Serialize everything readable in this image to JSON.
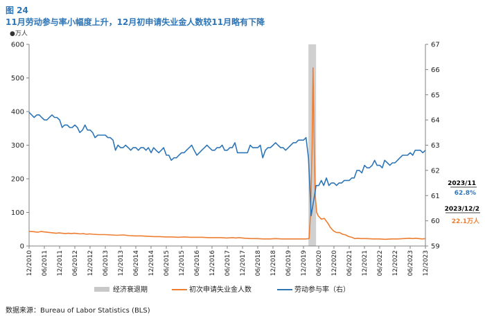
{
  "header": {
    "figure_number": "图 24",
    "title": "11月劳动参与率小幅度上升，12月初申请失业金人数较11月略有下降"
  },
  "source_note": "数据来源：Bureau of Labor Statistics (BLS)",
  "chart_data": {
    "type": "line",
    "y_left_unit": "万人",
    "y_left_lim": [
      0,
      600
    ],
    "y_left_ticks": [
      "0",
      "100",
      "200",
      "300",
      "400",
      "500",
      "600"
    ],
    "y_right_lim": [
      59,
      67
    ],
    "y_right_ticks": [
      "59",
      "60",
      "61",
      "62",
      "63",
      "64",
      "65",
      "66",
      "67"
    ],
    "x_tick_labels": [
      "12/2010",
      "06/2011",
      "12/2011",
      "06/2012",
      "12/2012",
      "06/2013",
      "12/2013",
      "06/2014",
      "12/2014",
      "06/2015",
      "12/2015",
      "06/2016",
      "12/2016",
      "06/2017",
      "12/2017",
      "06/2018",
      "12/2018",
      "06/2019",
      "12/2019",
      "06/2020",
      "12/2020",
      "06/2021",
      "12/2021",
      "06/2022",
      "12/2022",
      "06/2023",
      "12/2023"
    ],
    "x_range": [
      2010.917,
      2023.917
    ],
    "recession": {
      "name": "经济衰退期",
      "start": 2020.08,
      "end": 2020.33
    },
    "annotations": [
      {
        "label": "2023/11",
        "value": "62.8%",
        "color": "#2e75b6"
      },
      {
        "label": "2023/12/2",
        "value": "22.1万人",
        "color": "#ed7d31"
      }
    ],
    "series": [
      {
        "name": "初次申请失业金人数",
        "axis": "left",
        "color": "#ed7d31",
        "x": [
          2010.92,
          2011.0,
          2011.1,
          2011.2,
          2011.3,
          2011.4,
          2011.5,
          2011.6,
          2011.7,
          2011.8,
          2011.9,
          2012.0,
          2012.1,
          2012.2,
          2012.3,
          2012.4,
          2012.5,
          2012.6,
          2012.7,
          2012.8,
          2012.9,
          2013.0,
          2013.2,
          2013.4,
          2013.6,
          2013.8,
          2014.0,
          2014.2,
          2014.4,
          2014.6,
          2014.8,
          2015.0,
          2015.2,
          2015.4,
          2015.6,
          2015.8,
          2016.0,
          2016.2,
          2016.4,
          2016.6,
          2016.8,
          2017.0,
          2017.2,
          2017.4,
          2017.6,
          2017.7,
          2017.8,
          2018.0,
          2018.2,
          2018.4,
          2018.6,
          2018.8,
          2019.0,
          2019.2,
          2019.4,
          2019.6,
          2019.8,
          2020.0,
          2020.1,
          2020.15,
          2020.2,
          2020.23,
          2020.27,
          2020.3,
          2020.35,
          2020.4,
          2020.45,
          2020.5,
          2020.6,
          2020.7,
          2020.8,
          2020.9,
          2021.0,
          2021.1,
          2021.2,
          2021.3,
          2021.4,
          2021.5,
          2021.6,
          2021.7,
          2021.8,
          2021.9,
          2022.0,
          2022.2,
          2022.4,
          2022.6,
          2022.8,
          2023.0,
          2023.2,
          2023.4,
          2023.5,
          2023.6,
          2023.7,
          2023.8,
          2023.92
        ],
        "y": [
          43,
          43,
          42,
          41,
          43,
          42,
          41,
          40,
          39,
          38,
          39,
          38,
          37,
          38,
          37,
          38,
          37,
          36,
          37,
          35,
          36,
          35,
          34,
          34,
          33,
          32,
          33,
          31,
          30,
          30,
          29,
          28,
          28,
          27,
          27,
          26,
          27,
          26,
          26,
          26,
          25,
          25,
          25,
          24,
          25,
          24,
          25,
          23,
          22,
          22,
          21,
          21,
          22,
          21,
          21,
          21,
          21,
          21,
          22,
          100,
          300,
          530,
          300,
          150,
          100,
          90,
          85,
          80,
          82,
          70,
          55,
          45,
          40,
          40,
          35,
          33,
          28,
          26,
          22,
          23,
          22,
          22,
          22,
          21,
          21,
          20,
          21,
          21,
          22,
          23,
          22,
          23,
          22,
          21,
          22.1
        ]
      },
      {
        "name": "劳动参与率（右）",
        "axis": "right",
        "color": "#2e75b6",
        "x": [
          2010.92,
          2011.0,
          2011.08,
          2011.17,
          2011.25,
          2011.33,
          2011.42,
          2011.5,
          2011.58,
          2011.67,
          2011.75,
          2011.83,
          2011.92,
          2012.0,
          2012.08,
          2012.17,
          2012.25,
          2012.33,
          2012.42,
          2012.5,
          2012.58,
          2012.67,
          2012.75,
          2012.83,
          2012.92,
          2013.0,
          2013.08,
          2013.17,
          2013.25,
          2013.33,
          2013.42,
          2013.5,
          2013.58,
          2013.67,
          2013.75,
          2013.83,
          2013.92,
          2014.0,
          2014.08,
          2014.17,
          2014.25,
          2014.33,
          2014.42,
          2014.5,
          2014.58,
          2014.67,
          2014.75,
          2014.83,
          2014.92,
          2015.0,
          2015.08,
          2015.17,
          2015.25,
          2015.33,
          2015.42,
          2015.5,
          2015.58,
          2015.67,
          2015.75,
          2015.83,
          2015.92,
          2016.0,
          2016.08,
          2016.17,
          2016.25,
          2016.33,
          2016.42,
          2016.5,
          2016.58,
          2016.67,
          2016.75,
          2016.83,
          2016.92,
          2017.0,
          2017.08,
          2017.17,
          2017.25,
          2017.33,
          2017.42,
          2017.5,
          2017.58,
          2017.67,
          2017.75,
          2017.83,
          2017.92,
          2018.0,
          2018.08,
          2018.17,
          2018.25,
          2018.33,
          2018.42,
          2018.5,
          2018.58,
          2018.67,
          2018.75,
          2018.83,
          2018.92,
          2019.0,
          2019.08,
          2019.17,
          2019.25,
          2019.33,
          2019.42,
          2019.5,
          2019.58,
          2019.67,
          2019.75,
          2019.83,
          2019.92,
          2020.0,
          2020.08,
          2020.17,
          2020.25,
          2020.33,
          2020.42,
          2020.5,
          2020.58,
          2020.67,
          2020.75,
          2020.83,
          2020.92,
          2021.0,
          2021.08,
          2021.17,
          2021.25,
          2021.33,
          2021.42,
          2021.5,
          2021.58,
          2021.67,
          2021.75,
          2021.83,
          2021.92,
          2022.0,
          2022.08,
          2022.17,
          2022.25,
          2022.33,
          2022.42,
          2022.5,
          2022.58,
          2022.67,
          2022.75,
          2022.83,
          2022.92,
          2023.0,
          2023.08,
          2023.17,
          2023.25,
          2023.33,
          2023.42,
          2023.5,
          2023.58,
          2023.67,
          2023.75,
          2023.83,
          2023.92
        ],
        "y": [
          64.3,
          64.2,
          64.1,
          64.2,
          64.2,
          64.1,
          64.0,
          64.0,
          64.1,
          64.2,
          64.1,
          64.1,
          64.0,
          63.7,
          63.8,
          63.8,
          63.7,
          63.7,
          63.8,
          63.7,
          63.5,
          63.6,
          63.8,
          63.6,
          63.6,
          63.5,
          63.3,
          63.4,
          63.4,
          63.4,
          63.4,
          63.3,
          63.3,
          63.2,
          62.8,
          63.0,
          62.9,
          62.9,
          63.0,
          62.9,
          62.8,
          62.9,
          62.9,
          62.8,
          62.9,
          62.9,
          62.8,
          62.9,
          62.7,
          62.9,
          62.8,
          62.7,
          62.8,
          62.9,
          62.6,
          62.6,
          62.4,
          62.5,
          62.5,
          62.6,
          62.7,
          62.7,
          62.8,
          62.9,
          63.0,
          62.8,
          62.6,
          62.7,
          62.8,
          62.9,
          63.0,
          62.9,
          62.8,
          62.8,
          62.9,
          62.9,
          63.0,
          62.8,
          62.8,
          62.9,
          62.9,
          63.1,
          62.7,
          62.7,
          62.7,
          62.7,
          62.7,
          63.0,
          62.9,
          62.9,
          62.9,
          63.0,
          62.5,
          62.8,
          62.9,
          62.9,
          63.0,
          63.1,
          63.0,
          62.9,
          62.9,
          62.8,
          62.9,
          63.0,
          63.1,
          63.1,
          63.2,
          63.2,
          63.2,
          63.3,
          62.5,
          60.2,
          60.8,
          61.4,
          61.4,
          61.6,
          61.4,
          61.7,
          61.4,
          61.5,
          61.5,
          61.4,
          61.5,
          61.5,
          61.6,
          61.6,
          61.6,
          61.7,
          61.7,
          62.0,
          62.0,
          61.9,
          62.2,
          62.1,
          62.1,
          62.2,
          62.4,
          62.2,
          62.2,
          62.1,
          62.4,
          62.3,
          62.2,
          62.3,
          62.3,
          62.4,
          62.5,
          62.6,
          62.6,
          62.6,
          62.7,
          62.6,
          62.8,
          62.8,
          62.8,
          62.7,
          62.8
        ]
      }
    ]
  }
}
